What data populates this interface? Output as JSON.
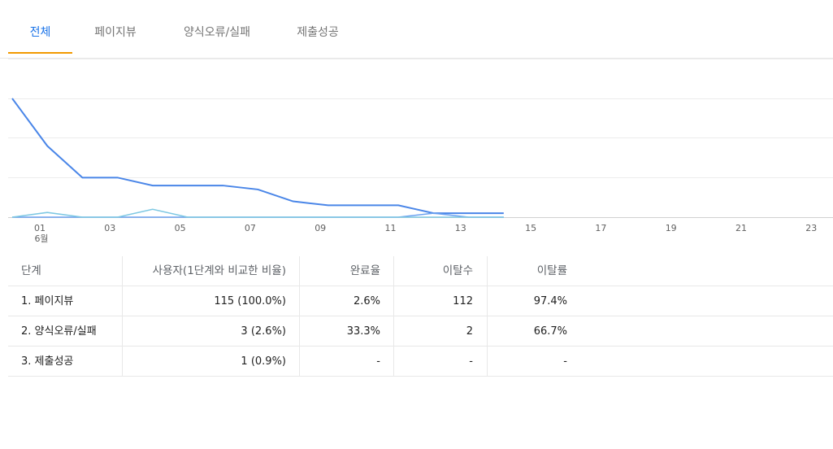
{
  "tabs": [
    {
      "label": "전체",
      "active": true
    },
    {
      "label": "페이지뷰",
      "active": false
    },
    {
      "label": "양식오류/실패",
      "active": false
    },
    {
      "label": "제출성공",
      "active": false
    }
  ],
  "chart_data": {
    "type": "line",
    "x_ticks": [
      "01",
      "03",
      "05",
      "07",
      "09",
      "11",
      "13",
      "15",
      "17",
      "19",
      "21",
      "23"
    ],
    "x_sublabel": "6월",
    "x": [
      0,
      1,
      2,
      3,
      4,
      5,
      6,
      7,
      8,
      9,
      10,
      11,
      12,
      13,
      14
    ],
    "series": [
      {
        "values": [
          30,
          18,
          10,
          10,
          8,
          8,
          8,
          7,
          4,
          3,
          3,
          3,
          1,
          1,
          1
        ],
        "color": "#4a86e8"
      },
      {
        "values": [
          0,
          0,
          0,
          0,
          0,
          0,
          0,
          0,
          0,
          0,
          0,
          0,
          1,
          0,
          0
        ],
        "color": "#6aa1f0"
      },
      {
        "values": [
          0,
          1.2,
          0,
          0,
          2,
          0,
          0,
          0,
          0,
          0,
          0,
          0,
          0,
          0,
          0
        ],
        "color": "#7ec8e3"
      }
    ],
    "ylim": [
      0,
      30
    ],
    "grid": true
  },
  "table": {
    "headers": [
      "단계",
      "사용자(1단계와 비교한 비율)",
      "완료율",
      "이탈수",
      "이탈률"
    ],
    "rows": [
      [
        "1. 페이지뷰",
        "115 (100.0%)",
        "2.6%",
        "112",
        "97.4%"
      ],
      [
        "2. 양식오류/실패",
        "3 (2.6%)",
        "33.3%",
        "2",
        "66.7%"
      ],
      [
        "3. 제출성공",
        "1 (0.9%)",
        "-",
        "-",
        "-"
      ]
    ]
  }
}
